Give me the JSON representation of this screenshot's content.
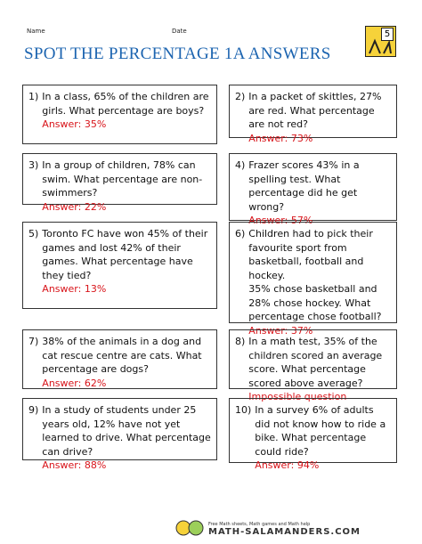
{
  "header": {
    "name_label": "Name",
    "date_label": "Date",
    "title": "SPOT THE PERCENTAGE 1A ANSWERS",
    "logo_number": "5"
  },
  "questions": [
    {
      "number": "1)",
      "text": "In a class, 65% of the children are girls. What percentage are boys?",
      "answer": "Answer: 35%"
    },
    {
      "number": "2)",
      "text": "In a packet of skittles, 27% are red. What percentage are not red?",
      "answer": "Answer: 73%"
    },
    {
      "number": "3)",
      "text": "In a group of children, 78% can swim. What percentage are non-swimmers?",
      "answer": "Answer: 22%"
    },
    {
      "number": "4)",
      "text": "Frazer scores 43% in a spelling test. What percentage did he get wrong?",
      "answer": "Answer: 57%"
    },
    {
      "number": "5)",
      "text": "Toronto FC have won 45% of their games and lost 42% of their games. What percentage have they tied?",
      "answer": "Answer: 13%"
    },
    {
      "number": "6)",
      "text": "Children had to pick their favourite sport from basketball, football and hockey.\n35% chose basketball and 28% chose hockey. What percentage chose football?",
      "answer": "Answer: 37%"
    },
    {
      "number": "7)",
      "text": "38% of the animals in a dog and cat rescue centre are cats. What percentage are dogs?",
      "answer": "Answer: 62%"
    },
    {
      "number": "8)",
      "text": "In a math test, 35% of the children scored an average score. What percentage scored above average?",
      "answer": "Impossible question"
    },
    {
      "number": "9)",
      "text": "In a study of students under 25 years old, 12% have not yet learned to drive. What percentage can drive?",
      "answer": "Answer: 88%"
    },
    {
      "number": "10)",
      "text": "In a survey 6% of adults did not know how to ride a bike. What percentage could ride?",
      "answer": "Answer: 94%"
    }
  ],
  "footer": {
    "tagline": "Free Math sheets, Math games and Math help",
    "site": "MATH-SALAMANDERS.COM"
  }
}
